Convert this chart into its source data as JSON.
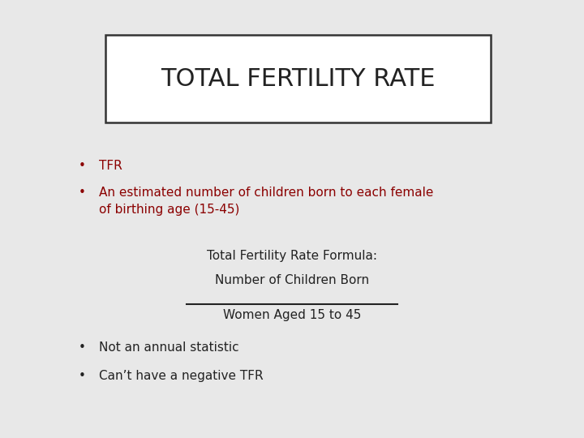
{
  "title": "TOTAL FERTILITY RATE",
  "background_color": "#e8e8e8",
  "title_box_color": "#ffffff",
  "title_box_edge_color": "#333333",
  "title_font_size": 22,
  "title_font_color": "#222222",
  "bullet_color_red": "#8b0000",
  "bullet_color_dark": "#222222",
  "bullet_items_red": [
    "TFR",
    "An estimated number of children born to each female\nof birthing age (15-45)"
  ],
  "formula_label": "Total Fertility Rate Formula:",
  "formula_numerator": "Number of Children Born",
  "formula_denominator": "Women Aged 15 to 45",
  "bullet_items_dark": [
    "Not an annual statistic",
    "Can’t have a negative TFR"
  ]
}
